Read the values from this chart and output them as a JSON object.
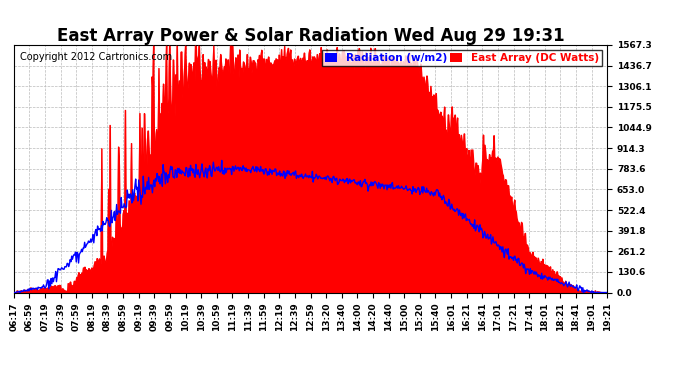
{
  "title": "East Array Power & Solar Radiation Wed Aug 29 19:31",
  "copyright": "Copyright 2012 Cartronics.com",
  "legend_radiation": "Radiation (w/m2)",
  "legend_east_array": "East Array (DC Watts)",
  "radiation_color": "#0000ff",
  "east_array_color": "#ff0000",
  "background_color": "#ffffff",
  "plot_bg_color": "#ffffff",
  "ymax": 1567.3,
  "ymin": 0.0,
  "yticks": [
    0.0,
    130.6,
    261.2,
    391.8,
    522.4,
    653.0,
    783.6,
    914.3,
    1044.9,
    1175.5,
    1306.1,
    1436.7,
    1567.3
  ],
  "xtick_labels": [
    "06:17",
    "06:59",
    "07:19",
    "07:39",
    "07:59",
    "08:19",
    "08:39",
    "08:59",
    "09:19",
    "09:39",
    "09:59",
    "10:19",
    "10:39",
    "10:59",
    "11:19",
    "11:39",
    "11:59",
    "12:19",
    "12:39",
    "12:59",
    "13:20",
    "13:40",
    "14:00",
    "14:20",
    "14:40",
    "15:00",
    "15:20",
    "15:40",
    "16:01",
    "16:21",
    "16:41",
    "17:01",
    "17:21",
    "17:41",
    "18:01",
    "18:21",
    "18:41",
    "19:01",
    "19:21"
  ],
  "title_fontsize": 12,
  "copyright_fontsize": 7,
  "tick_fontsize": 6.5,
  "legend_fontsize": 7.5
}
